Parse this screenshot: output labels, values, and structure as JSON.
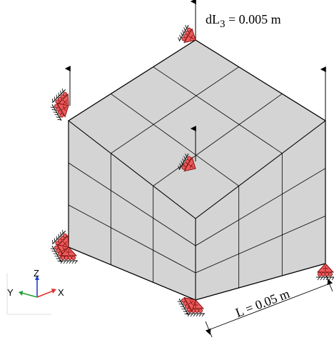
{
  "load_label": {
    "prefix": "dL",
    "subscript": "3",
    "suffix": " = 0.005 m"
  },
  "dimension_label": "L = 0.05 m",
  "triad": {
    "z": "Z",
    "y": "Y",
    "x": "X"
  },
  "colors": {
    "face_fill": "#d4d4d4",
    "edge": "#000000",
    "support_fill": "#f05a5a",
    "support_stroke": "#7a1010",
    "triad_x": "#e03030",
    "triad_y": "#20a030",
    "triad_z": "#2040d0"
  },
  "icons": [
    "up-arrow-icon",
    "pinned-roller-support-icon",
    "coordinate-triad-icon"
  ]
}
